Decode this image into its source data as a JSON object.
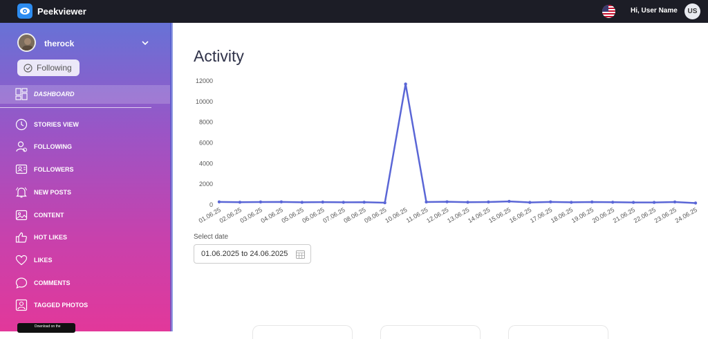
{
  "app": {
    "brand": "Peekviewer",
    "greeting": "Hi,  User Name",
    "user_initials": "US"
  },
  "profile": {
    "username": "therock",
    "follow_label": "Following"
  },
  "sidebar": {
    "items": [
      {
        "label": "DASHBOARD",
        "icon": "dashboard-icon",
        "active": true
      },
      {
        "label": "STORIES VIEW",
        "icon": "clock-icon"
      },
      {
        "label": "FOLLOWING",
        "icon": "user-following-icon"
      },
      {
        "label": "FOLLOWERS",
        "icon": "followers-icon"
      },
      {
        "label": "NEW POSTS",
        "icon": "bell-icon"
      },
      {
        "label": "CONTENT",
        "icon": "image-icon"
      },
      {
        "label": "HOT LIKES",
        "icon": "thumbs-up-icon"
      },
      {
        "label": "LIKES",
        "icon": "heart-icon"
      },
      {
        "label": "COMMENTS",
        "icon": "comment-icon"
      },
      {
        "label": "TAGGED PHOTOS",
        "icon": "tagged-photo-icon"
      }
    ],
    "store_badge": "Download on the"
  },
  "main": {
    "title": "Activity",
    "date_label": "Select date",
    "date_value": "01.06.2025 to 24.06.2025"
  },
  "colors": {
    "accent": "#5a66d6",
    "topbar": "#1c1d26"
  },
  "chart_data": {
    "type": "line",
    "title": "",
    "xlabel": "",
    "ylabel": "",
    "ylim": [
      0,
      12000
    ],
    "yticks": [
      0,
      2000,
      4000,
      6000,
      8000,
      10000,
      12000
    ],
    "x": [
      "01.06.25",
      "02.06.25",
      "03.06.25",
      "04.06.25",
      "05.06.25",
      "06.06.25",
      "07.06.25",
      "08.06.25",
      "09.06.25",
      "10.06.25",
      "11.06.25",
      "12.06.25",
      "13.06.25",
      "14.06.25",
      "15.06.25",
      "16.06.25",
      "17.06.25",
      "18.06.25",
      "19.06.25",
      "20.06.25",
      "21.06.25",
      "22.06.25",
      "23.06.25",
      "24.06.25"
    ],
    "series": [
      {
        "values": [
          280,
          250,
          270,
          280,
          240,
          260,
          240,
          250,
          200,
          11700,
          270,
          290,
          250,
          270,
          330,
          230,
          280,
          240,
          270,
          250,
          230,
          230,
          270,
          170
        ]
      }
    ],
    "grid": false,
    "legend": "none"
  }
}
